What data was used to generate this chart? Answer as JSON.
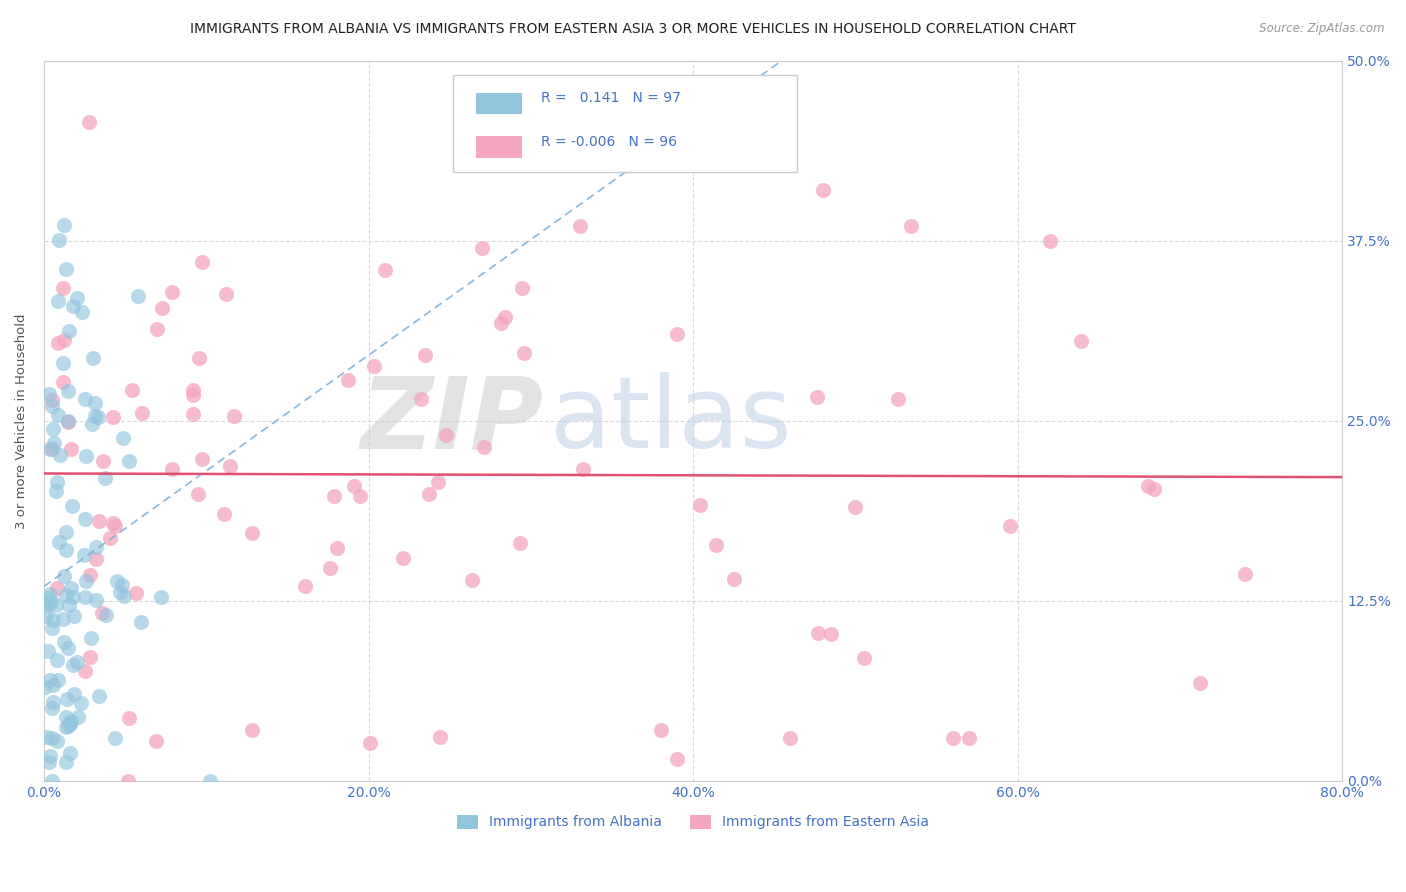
{
  "title": "IMMIGRANTS FROM ALBANIA VS IMMIGRANTS FROM EASTERN ASIA 3 OR MORE VEHICLES IN HOUSEHOLD CORRELATION CHART",
  "source": "Source: ZipAtlas.com",
  "ylabel": "3 or more Vehicles in Household",
  "xlim": [
    0.0,
    80.0
  ],
  "ylim": [
    0.0,
    50.0
  ],
  "albania_R": 0.141,
  "albania_N": 97,
  "eastern_asia_R": -0.006,
  "eastern_asia_N": 96,
  "albania_color": "#92c5de",
  "eastern_asia_color": "#f4a6be",
  "eastern_asia_line_color": "#e05070",
  "albania_trend_color": "#7ab0d8",
  "axis_label_color": "#4472c4",
  "watermark_zip_color": "#c8c8cc",
  "watermark_atlas_color": "#b8cce4",
  "background_color": "#ffffff",
  "legend_border_color": "#cccccc",
  "grid_color": "#d0d0d0"
}
